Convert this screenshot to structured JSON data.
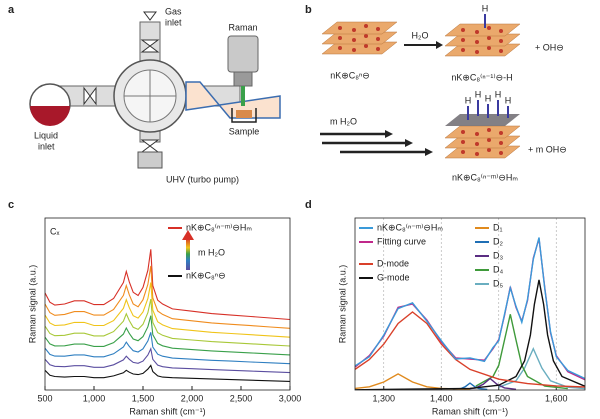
{
  "panels": {
    "a": {
      "label": "a",
      "gas_inlet": [
        "Gas",
        "inlet"
      ],
      "raman": "Raman",
      "liquid_inlet": [
        "Liquid",
        "inlet"
      ],
      "sample": "Sample",
      "pump": "UHV (turbo pump)"
    },
    "b": {
      "label": "b",
      "reaction1": {
        "reactant": "nK⊕C₈ⁿ⊖",
        "reagent": "H₂O",
        "product": "nK⊕C₈⁽ⁿ⁻¹⁾⊖-H",
        "byproduct": "+ OH⊖",
        "h": "H"
      },
      "reaction2": {
        "reagent": "m H₂O",
        "product": "nK⊕C₈⁽ⁿ⁻ᵐ⁾⊖Hₘ",
        "byproduct": "+ m OH⊖"
      }
    }
  },
  "chart_data": [
    {
      "type": "line",
      "label": "c",
      "xlabel": "Raman shift (cm⁻¹)",
      "ylabel": "Raman signal (a.u.)",
      "annotations": [
        "Cₓ",
        "m H₂O"
      ],
      "x": [
        500,
        550,
        600,
        700,
        800,
        900,
        1000,
        1100,
        1200,
        1300,
        1330,
        1360,
        1400,
        1450,
        1500,
        1550,
        1580,
        1600,
        1650,
        1700,
        1800,
        2000,
        2200,
        2400,
        2600,
        2800,
        3000
      ],
      "xlim": [
        500,
        3000
      ],
      "xticks": [
        500,
        {
          "value": 1000,
          "label": "1,000"
        },
        {
          "value": 1500,
          "label": "1,500"
        },
        {
          "value": 2000,
          "label": "2,000"
        },
        {
          "value": 2500,
          "label": "2,500"
        },
        {
          "value": 3000,
          "label": "3,000"
        }
      ],
      "ylim": [
        0,
        14
      ],
      "grid": false,
      "series": [
        {
          "name": "nK⊕C₈ⁿ⊖",
          "color": "#111111",
          "values": [
            1.6,
            1.2,
            1.1,
            1.05,
            1.1,
            1.1,
            1.0,
            1.0,
            1.15,
            1.4,
            1.6,
            1.45,
            1.3,
            1.25,
            1.35,
            1.7,
            2.0,
            1.5,
            1.15,
            1.05,
            1.0,
            0.95,
            0.9,
            0.85,
            0.8,
            0.75,
            0.7
          ]
        },
        {
          "color": "#5b4ea0",
          "values": [
            2.5,
            2.05,
            1.93,
            1.9,
            1.98,
            1.98,
            1.85,
            1.85,
            2.05,
            2.45,
            2.75,
            2.5,
            2.25,
            2.17,
            2.35,
            2.85,
            3.35,
            2.5,
            2.03,
            1.9,
            1.8,
            1.73,
            1.66,
            1.6,
            1.54,
            1.48,
            1.42
          ]
        },
        {
          "color": "#2f7fc1",
          "values": [
            3.4,
            2.9,
            2.76,
            2.75,
            2.86,
            2.86,
            2.7,
            2.7,
            2.95,
            3.5,
            3.9,
            3.55,
            3.2,
            3.09,
            3.35,
            4.0,
            4.7,
            3.5,
            2.91,
            2.75,
            2.6,
            2.51,
            2.42,
            2.35,
            2.28,
            2.21,
            2.14
          ]
        },
        {
          "color": "#3aa04a",
          "values": [
            4.3,
            3.75,
            3.59,
            3.6,
            3.74,
            3.74,
            3.55,
            3.55,
            3.85,
            4.55,
            5.05,
            4.6,
            4.15,
            4.01,
            4.35,
            5.15,
            6.05,
            4.5,
            3.79,
            3.6,
            3.4,
            3.29,
            3.18,
            3.1,
            3.02,
            2.94,
            2.86
          ]
        },
        {
          "color": "#a8c838",
          "values": [
            5.2,
            4.6,
            4.42,
            4.45,
            4.62,
            4.62,
            4.4,
            4.4,
            4.75,
            5.6,
            6.2,
            5.65,
            5.1,
            4.93,
            5.35,
            6.3,
            7.4,
            5.5,
            4.67,
            4.45,
            4.2,
            4.07,
            3.94,
            3.85,
            3.76,
            3.67,
            3.58
          ]
        },
        {
          "color": "#f0c419",
          "values": [
            6.1,
            5.45,
            5.25,
            5.3,
            5.5,
            5.5,
            5.25,
            5.25,
            5.65,
            6.65,
            7.35,
            6.7,
            6.05,
            5.85,
            6.35,
            7.45,
            8.75,
            6.5,
            5.55,
            5.3,
            5.0,
            4.85,
            4.7,
            4.6,
            4.5,
            4.4,
            4.3
          ]
        },
        {
          "color": "#f08c1e",
          "values": [
            7.0,
            6.3,
            6.08,
            6.15,
            6.38,
            6.38,
            6.1,
            6.1,
            6.55,
            7.7,
            8.5,
            7.75,
            7.0,
            6.77,
            7.35,
            8.6,
            10.1,
            7.5,
            6.43,
            6.15,
            5.8,
            5.63,
            5.46,
            5.35,
            5.24,
            5.13,
            5.02
          ]
        },
        {
          "name": "nK⊕C₈⁽ⁿ⁻ᵐ⁾⊖Hₘ",
          "color": "#d73027",
          "values": [
            7.9,
            7.15,
            6.91,
            7.0,
            7.26,
            7.26,
            6.95,
            6.95,
            7.45,
            8.75,
            9.65,
            8.8,
            7.95,
            7.69,
            8.35,
            9.75,
            11.45,
            8.5,
            7.31,
            7.0,
            6.6,
            6.41,
            6.22,
            6.1,
            5.98,
            5.86,
            5.74
          ]
        }
      ]
    },
    {
      "type": "line",
      "label": "d",
      "xlabel": "Raman shift (cm⁻¹)",
      "ylabel": "Raman signal (a.u.)",
      "xlim": [
        1250,
        1650
      ],
      "xticks": [
        {
          "value": 1300,
          "label": "1,300"
        },
        {
          "value": 1400,
          "label": "1,400"
        },
        {
          "value": 1500,
          "label": "1,500"
        },
        {
          "value": 1600,
          "label": "1,600"
        }
      ],
      "ylim": [
        0,
        0.75
      ],
      "grid": true,
      "series": [
        {
          "name": "nK⊕C₈⁽ⁿ⁻ᵐ⁾⊖Hₘ",
          "color": "#3a9ad9",
          "x": [
            1250,
            1275,
            1300,
            1325,
            1350,
            1375,
            1400,
            1425,
            1450,
            1475,
            1490,
            1500,
            1510,
            1520,
            1530,
            1540,
            1550,
            1560,
            1570,
            1580,
            1590,
            1600,
            1620,
            1650
          ],
          "values": [
            0.105,
            0.145,
            0.24,
            0.355,
            0.38,
            0.3,
            0.215,
            0.135,
            0.14,
            0.125,
            0.185,
            0.215,
            0.33,
            0.445,
            0.365,
            0.295,
            0.395,
            0.57,
            0.665,
            0.44,
            0.255,
            0.145,
            0.085,
            0.05
          ]
        },
        {
          "name": "Fitting curve",
          "color": "#c0288a",
          "x": [
            1250,
            1275,
            1300,
            1325,
            1350,
            1375,
            1400,
            1425,
            1450,
            1475,
            1490,
            1500,
            1510,
            1520,
            1530,
            1540,
            1550,
            1560,
            1570,
            1580,
            1590,
            1600,
            1620,
            1650
          ],
          "values": [
            0.1,
            0.15,
            0.235,
            0.36,
            0.375,
            0.305,
            0.21,
            0.14,
            0.135,
            0.13,
            0.18,
            0.22,
            0.325,
            0.45,
            0.36,
            0.3,
            0.39,
            0.575,
            0.66,
            0.445,
            0.25,
            0.15,
            0.08,
            0.045
          ]
        },
        {
          "name": "D-mode",
          "color": "#d9402a",
          "x": [
            1250,
            1275,
            1300,
            1325,
            1350,
            1375,
            1400,
            1425,
            1450,
            1500,
            1550,
            1600,
            1650
          ],
          "values": [
            0.09,
            0.133,
            0.2,
            0.29,
            0.34,
            0.29,
            0.2,
            0.133,
            0.09,
            0.047,
            0.028,
            0.018,
            0.013
          ]
        },
        {
          "name": "G-mode",
          "color": "#111111",
          "x": [
            1250,
            1450,
            1500,
            1530,
            1545,
            1555,
            1562,
            1570,
            1578,
            1585,
            1595,
            1610,
            1650
          ],
          "values": [
            0.001,
            0.007,
            0.021,
            0.059,
            0.127,
            0.24,
            0.374,
            0.48,
            0.374,
            0.24,
            0.127,
            0.059,
            0.016
          ]
        },
        {
          "name": "D₁",
          "color": "#e08a1e",
          "x": [
            1250,
            1275,
            1300,
            1325,
            1350,
            1375,
            1400,
            1450
          ],
          "values": [
            0.007,
            0.014,
            0.035,
            0.07,
            0.035,
            0.014,
            0.007,
            0.003
          ]
        },
        {
          "name": "D₂",
          "color": "#1f6fb5",
          "x": [
            1420,
            1435,
            1442,
            1450,
            1458,
            1465,
            1480
          ],
          "values": [
            0.002,
            0.007,
            0.015,
            0.03,
            0.015,
            0.007,
            0.002
          ]
        },
        {
          "name": "D₃",
          "color": "#5a2d82",
          "x": [
            1440,
            1460,
            1473,
            1485,
            1497,
            1510,
            1530
          ],
          "values": [
            0.003,
            0.009,
            0.025,
            0.05,
            0.025,
            0.009,
            0.003
          ]
        },
        {
          "name": "D₄",
          "color": "#3f9a3a",
          "x": [
            1460,
            1490,
            1500,
            1510,
            1520,
            1530,
            1540,
            1550,
            1580,
            1620
          ],
          "values": [
            0.017,
            0.059,
            0.108,
            0.218,
            0.33,
            0.218,
            0.108,
            0.059,
            0.017,
            0.006
          ]
        },
        {
          "name": "D₅",
          "color": "#6aaec0",
          "x": [
            1500,
            1530,
            1545,
            1560,
            1575,
            1590,
            1620,
            1650
          ],
          "values": [
            0.012,
            0.04,
            0.096,
            0.18,
            0.096,
            0.04,
            0.012,
            0.006
          ]
        }
      ]
    }
  ]
}
